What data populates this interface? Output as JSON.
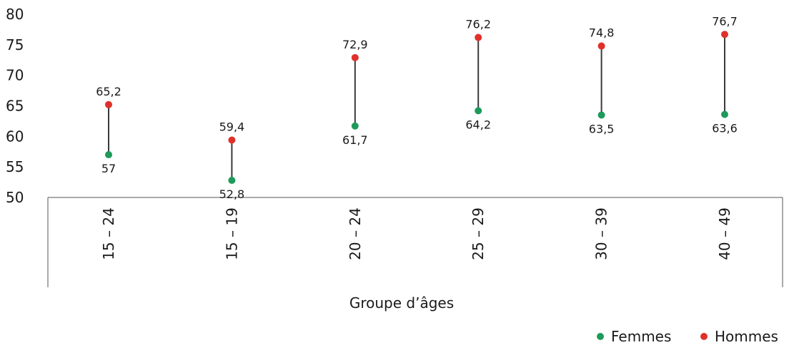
{
  "chart_data": {
    "type": "scatter",
    "subtype": "dumbbell",
    "title": "",
    "xlabel": "Groupe d’âges",
    "ylabel": "",
    "categories": [
      "15 – 24",
      "15 – 19",
      "20 – 24",
      "25 – 29",
      "30 – 39",
      "40 – 49"
    ],
    "series": [
      {
        "name": "Femmes",
        "color": "#1e9a5a",
        "values": [
          57,
          52.8,
          61.7,
          64.2,
          63.5,
          63.6
        ],
        "labels": [
          "57",
          "52,8",
          "61,7",
          "64,2",
          "63,5",
          "63,6"
        ]
      },
      {
        "name": "Hommes",
        "color": "#e0302a",
        "values": [
          65.2,
          59.4,
          72.9,
          76.2,
          74.8,
          76.7
        ],
        "labels": [
          "65,2",
          "59,4",
          "72,9",
          "76,2",
          "74,8",
          "76,7"
        ]
      }
    ],
    "ylim": [
      50,
      80
    ],
    "yticks": [
      50,
      55,
      60,
      65,
      70,
      75,
      80
    ],
    "connector_color": "#3a3a3a",
    "grid": false,
    "legend_position": "bottom-right"
  }
}
